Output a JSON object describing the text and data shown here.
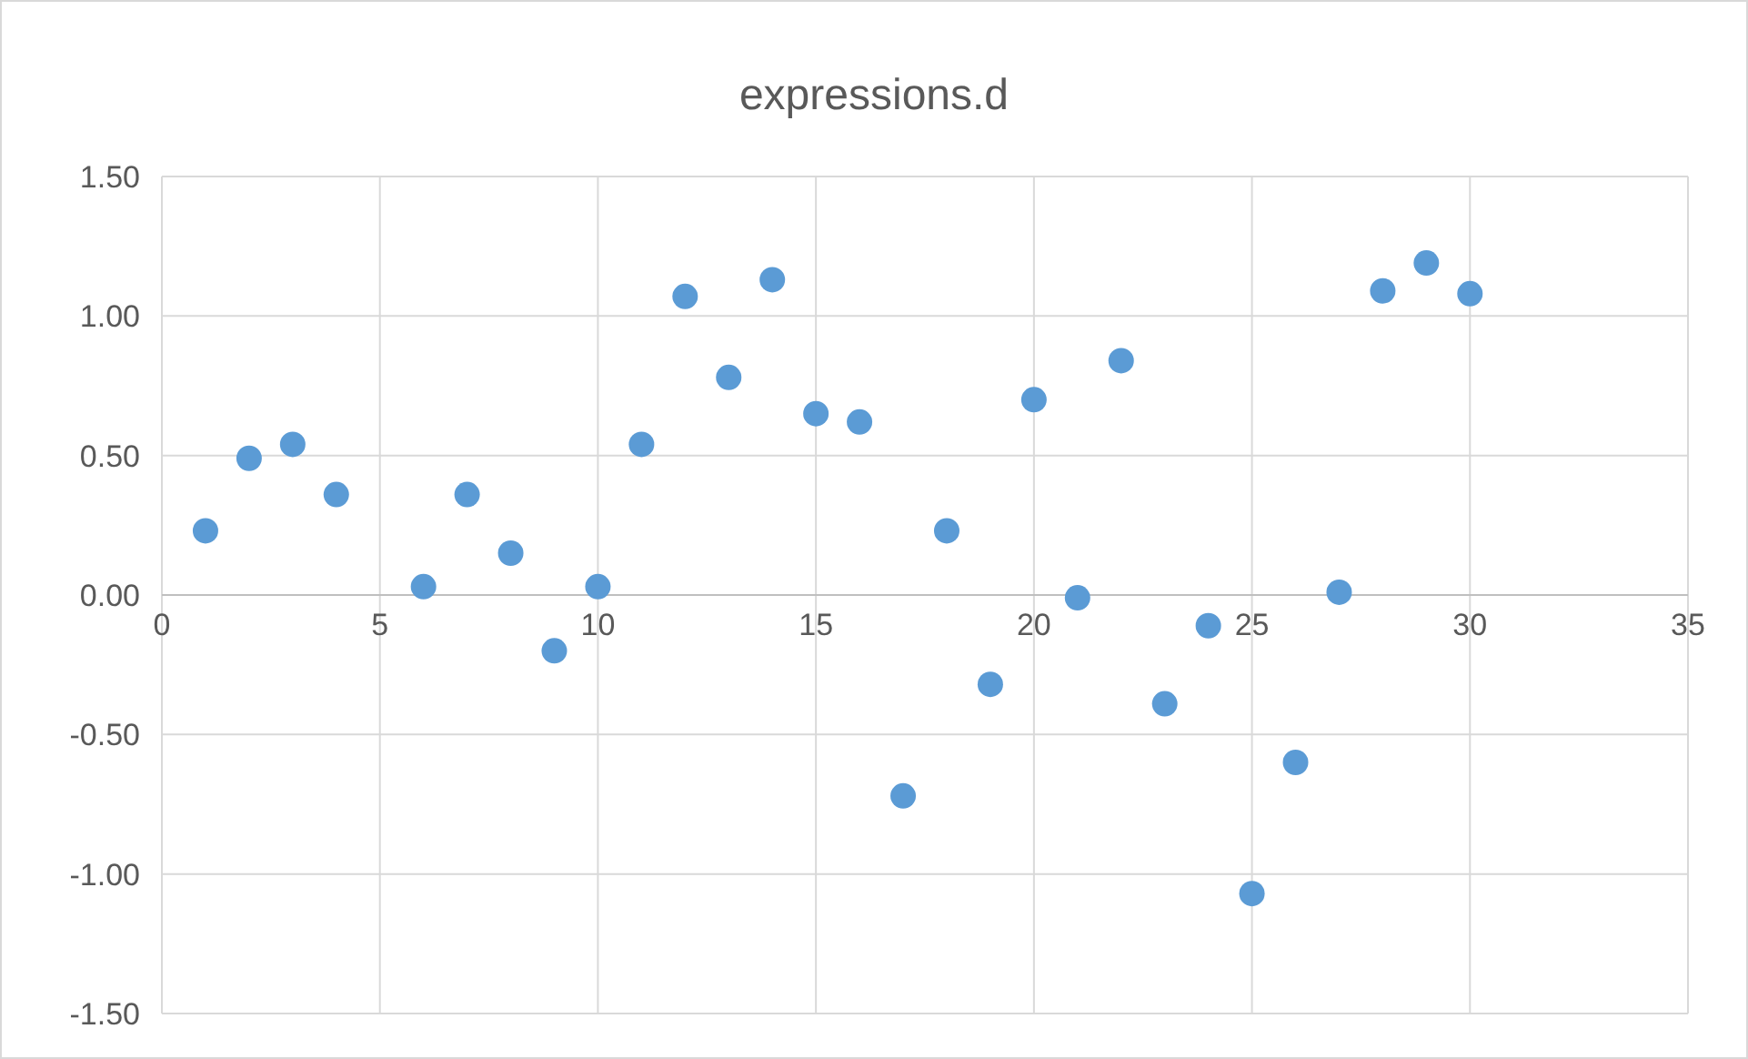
{
  "chart_data": {
    "type": "scatter",
    "title": "expressions.d",
    "x": [
      1,
      2,
      3,
      4,
      6,
      7,
      8,
      9,
      10,
      11,
      12,
      13,
      14,
      15,
      16,
      17,
      18,
      19,
      20,
      21,
      22,
      23,
      24,
      25,
      26,
      27,
      28,
      29,
      30
    ],
    "series": [
      {
        "color": "#5b9bd5",
        "values": [
          0.23,
          0.49,
          0.54,
          0.36,
          0.03,
          0.36,
          0.15,
          -0.2,
          0.03,
          0.54,
          1.07,
          0.78,
          1.13,
          0.65,
          0.62,
          -0.72,
          0.23,
          -0.32,
          0.7,
          -0.01,
          0.84,
          -0.39,
          -0.11,
          -1.07,
          -0.6,
          0.01,
          1.09,
          1.19,
          1.08
        ]
      }
    ],
    "xlim": [
      0,
      35
    ],
    "xticks": [
      0,
      5,
      10,
      15,
      20,
      25,
      30,
      35
    ],
    "ylim": [
      -1.5,
      1.5
    ],
    "yticks": [
      {
        "value": -1.5,
        "label": "-1.50"
      },
      {
        "value": -1,
        "label": "-1.00"
      },
      {
        "value": -0.5,
        "label": "-0.50"
      },
      {
        "value": 0,
        "label": "0.00"
      },
      {
        "value": 0.5,
        "label": "0.50"
      },
      {
        "value": 1,
        "label": "1.00"
      },
      {
        "value": 1.5,
        "label": "1.50"
      }
    ],
    "grid": true,
    "marker": "circle"
  }
}
